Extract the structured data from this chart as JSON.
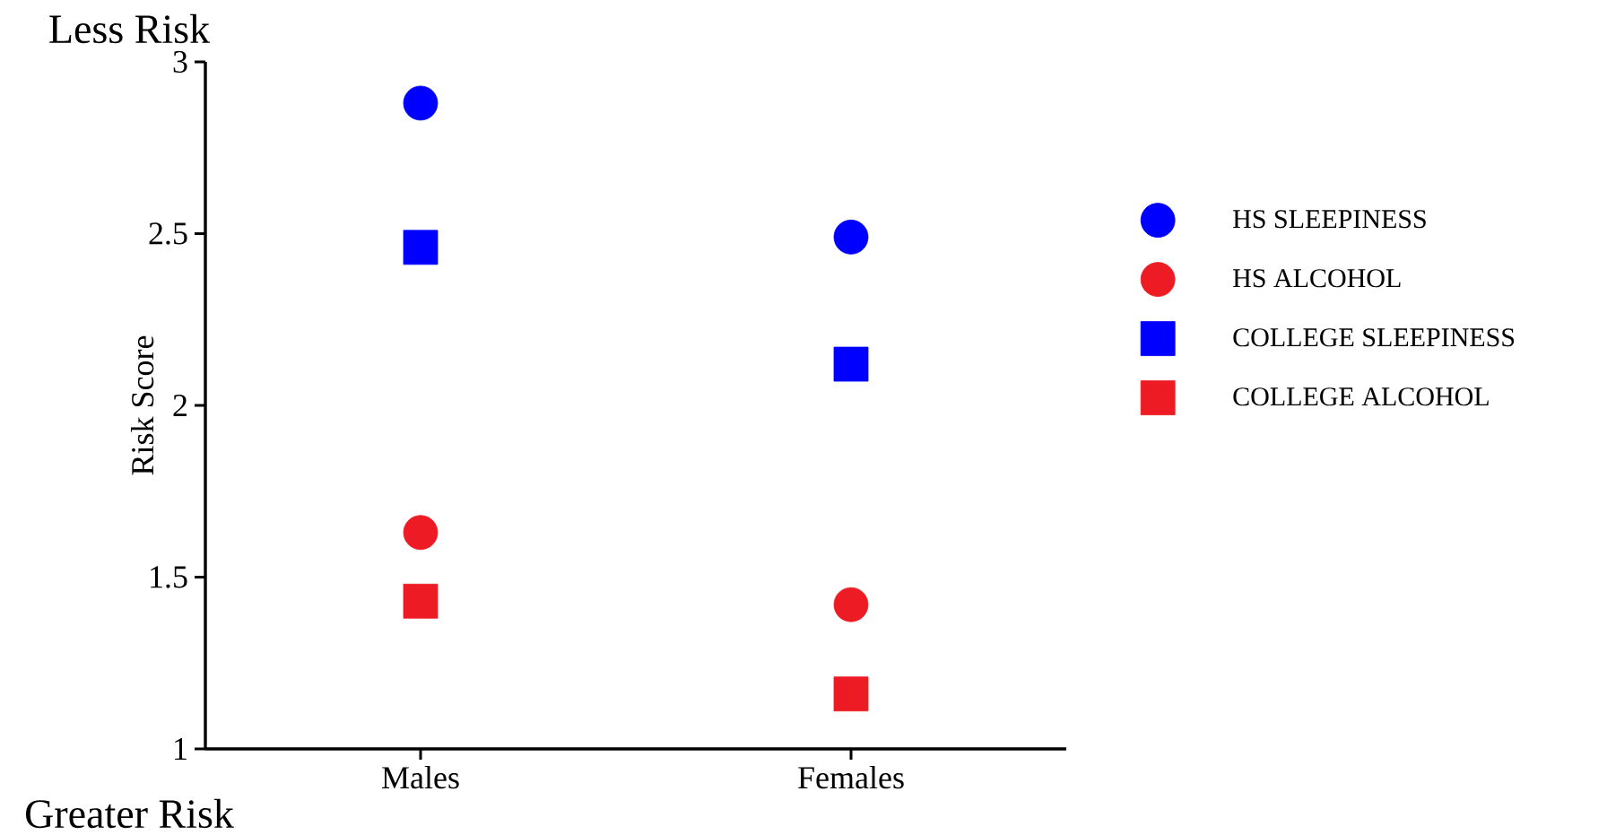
{
  "chart_data": {
    "type": "scatter",
    "ylabel": "Risk Score",
    "categories": [
      "Males",
      "Females"
    ],
    "series": [
      {
        "name": "HS SLEEPINESS",
        "color": "#0000ff",
        "marker": "circle",
        "values": [
          2.88,
          2.49
        ]
      },
      {
        "name": "HS ALCOHOL",
        "color": "#ed1c24",
        "marker": "circle",
        "values": [
          1.63,
          1.42
        ]
      },
      {
        "name": "COLLEGE SLEEPINESS",
        "color": "#0000ff",
        "marker": "square",
        "values": [
          2.46,
          2.12
        ]
      },
      {
        "name": "COLLEGE ALCOHOL",
        "color": "#ed1c24",
        "marker": "square",
        "values": [
          1.43,
          1.16
        ]
      }
    ],
    "ylim": [
      1,
      3
    ],
    "yticks": [
      1,
      1.5,
      2,
      2.5,
      3
    ],
    "grid": false,
    "legend": "right",
    "annotations": [
      "Less Risk",
      "Greater Risk"
    ]
  }
}
